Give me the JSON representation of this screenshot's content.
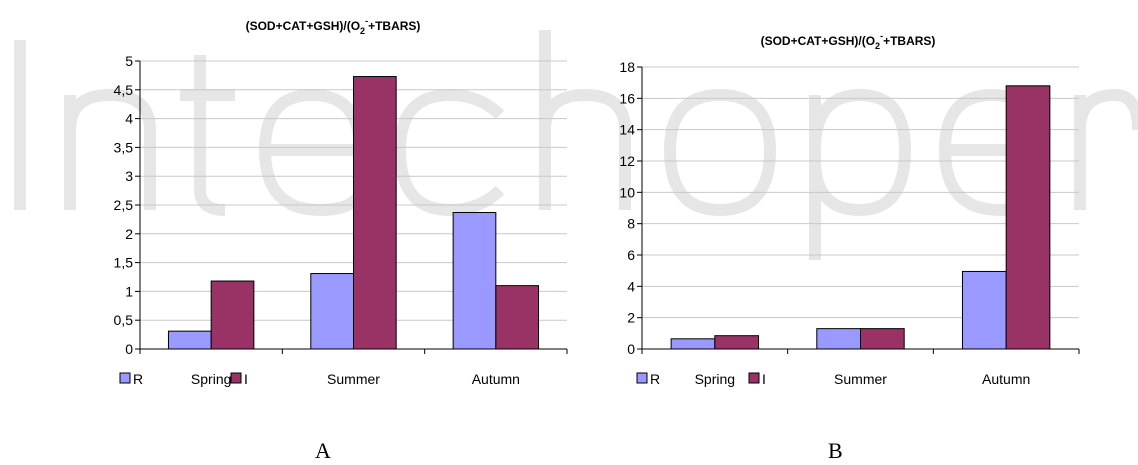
{
  "chart_data": [
    {
      "type": "bar",
      "title": "(SOD+CAT+GSH)/(O2-+TBARS)",
      "categories": [
        "Spring",
        "Summer",
        "Autumn"
      ],
      "series": [
        {
          "name": "R",
          "values": [
            0.31,
            1.31,
            2.37
          ],
          "color": "#9999FF"
        },
        {
          "name": "I",
          "values": [
            1.18,
            4.73,
            1.1
          ],
          "color": "#993366"
        }
      ],
      "ylim": [
        0,
        5
      ],
      "yticks": [
        "0",
        "0,5",
        "1",
        "1,5",
        "2",
        "2,5",
        "3",
        "3,5",
        "4",
        "4,5",
        "5"
      ],
      "grid": true,
      "legend": "bottom-left"
    },
    {
      "type": "bar",
      "title": "(SOD+CAT+GSH)/(O2-+TBARS)",
      "categories": [
        "Spring",
        "Summer",
        "Autumn"
      ],
      "series": [
        {
          "name": "R",
          "values": [
            0.65,
            1.3,
            4.95
          ],
          "color": "#9999FF"
        },
        {
          "name": "I",
          "values": [
            0.85,
            1.3,
            16.8
          ],
          "color": "#993366"
        }
      ],
      "ylim": [
        0,
        18
      ],
      "yticks": [
        "0",
        "2",
        "4",
        "6",
        "8",
        "10",
        "12",
        "14",
        "16",
        "18"
      ],
      "grid": true,
      "legend": "bottom-left"
    }
  ],
  "panels": {
    "a_label": "A",
    "b_label": "B"
  },
  "watermark": "IntechOpen"
}
